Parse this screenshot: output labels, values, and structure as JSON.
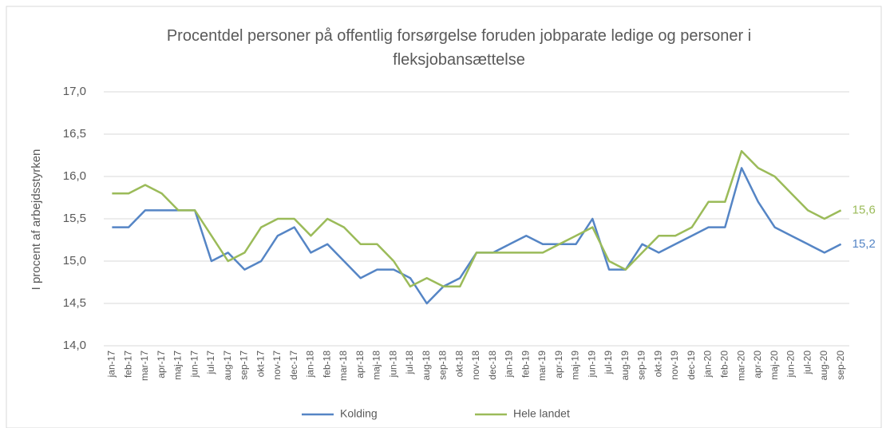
{
  "chart_data": {
    "type": "line",
    "title": "Procentdel personer på offentlig forsørgelse foruden jobparate ledige og personer i fleksjobansættelse",
    "ylabel": "I procent af arbejdsstyrken",
    "categories": [
      "jan-17",
      "feb-17",
      "mar-17",
      "apr-17",
      "maj-17",
      "jun-17",
      "jul-17",
      "aug-17",
      "sep-17",
      "okt-17",
      "nov-17",
      "dec-17",
      "jan-18",
      "feb-18",
      "mar-18",
      "apr-18",
      "maj-18",
      "jun-18",
      "jul-18",
      "aug-18",
      "sep-18",
      "okt-18",
      "nov-18",
      "dec-18",
      "jan-19",
      "feb-19",
      "mar-19",
      "apr-19",
      "maj-19",
      "jun-19",
      "jul-19",
      "aug-19",
      "sep-19",
      "okt-19",
      "nov-19",
      "dec-19",
      "jan-20",
      "feb-20",
      "mar-20",
      "apr-20",
      "maj-20",
      "jun-20",
      "jul-20",
      "aug-20",
      "sep-20"
    ],
    "series": [
      {
        "name": "Kolding",
        "color": "#5585c5",
        "end_label": "15,2",
        "values": [
          15.4,
          15.4,
          15.6,
          15.6,
          15.6,
          15.6,
          15.0,
          15.1,
          14.9,
          15.0,
          15.3,
          15.4,
          15.1,
          15.2,
          15.0,
          14.8,
          14.9,
          14.9,
          14.8,
          14.5,
          14.7,
          14.8,
          15.1,
          15.1,
          15.2,
          15.3,
          15.2,
          15.2,
          15.2,
          15.5,
          14.9,
          14.9,
          15.2,
          15.1,
          15.2,
          15.3,
          15.4,
          15.4,
          16.1,
          15.7,
          15.4,
          15.3,
          15.2,
          15.1,
          15.2
        ]
      },
      {
        "name": "Hele landet",
        "color": "#9bbb59",
        "end_label": "15,6",
        "values": [
          15.8,
          15.8,
          15.9,
          15.8,
          15.6,
          15.6,
          15.3,
          15.0,
          15.1,
          15.4,
          15.5,
          15.5,
          15.3,
          15.5,
          15.4,
          15.2,
          15.2,
          15.0,
          14.7,
          14.8,
          14.7,
          14.7,
          15.1,
          15.1,
          15.1,
          15.1,
          15.1,
          15.2,
          15.3,
          15.4,
          15.0,
          14.9,
          15.1,
          15.3,
          15.3,
          15.4,
          15.7,
          15.7,
          16.3,
          16.1,
          16.0,
          15.8,
          15.6,
          15.5,
          15.6
        ]
      }
    ],
    "ylim": [
      14,
      17
    ],
    "yticks": [
      {
        "value": 14,
        "label": "14,0"
      },
      {
        "value": 14.5,
        "label": "14,5"
      },
      {
        "value": 15,
        "label": "15,0"
      },
      {
        "value": 15.5,
        "label": "15,5"
      },
      {
        "value": 16,
        "label": "16,0"
      },
      {
        "value": 16.5,
        "label": "16,5"
      },
      {
        "value": 17,
        "label": "17,0"
      }
    ],
    "grid": true,
    "legend": "bottom"
  }
}
